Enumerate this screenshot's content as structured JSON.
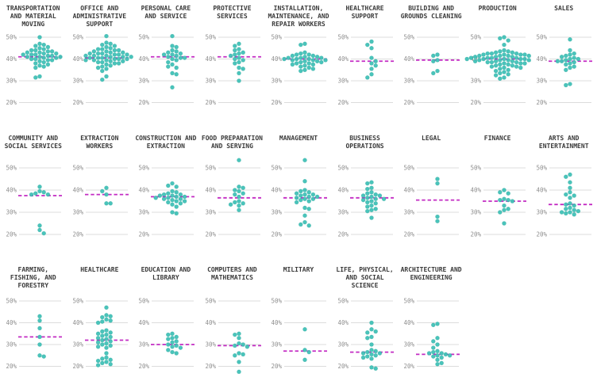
{
  "chart_data": {
    "type": "scatter",
    "subtype": "beeswarm_small_multiples",
    "title": "",
    "unit": "%",
    "yticks": [
      50,
      40,
      30,
      20
    ],
    "ytick_labels": [
      "50%",
      "40%",
      "30%",
      "20%"
    ],
    "grid": true,
    "median_line_style": "dashed",
    "legend": "none",
    "colors": {
      "dot": "#40c1b7",
      "dot_edge": "#24a79c",
      "median": "#c32bc3",
      "gridline": "#dcdcdc",
      "tick_text": "#8f8f8f",
      "title_text": "#3a3a3a",
      "background": "#ffffff"
    },
    "rows": [
      {
        "panels": [
          {
            "title": "TRANSPORTATION AND MATERIAL MOVING",
            "median": 41,
            "values": [
              50,
              47,
              46.5,
              46,
              45.5,
              45,
              44.5,
              44,
              44,
              43.5,
              43.5,
              43,
              43,
              42.5,
              42.5,
              42,
              42,
              42,
              41.5,
              41.5,
              41,
              41,
              41,
              40.5,
              40.5,
              40,
              40,
              39.5,
              39.5,
              39,
              38.5,
              38,
              37.5,
              37,
              36.5,
              36,
              32,
              31.5
            ]
          },
          {
            "title": "OFFICE AND ADMINISTRATIVE SUPPORT",
            "median": 40.5,
            "values": [
              50.5,
              47.5,
              47,
              46.5,
              46,
              45.5,
              45,
              44.5,
              44.5,
              44,
              44,
              43.5,
              43.5,
              43,
              43,
              42.5,
              42.5,
              42.5,
              42,
              42,
              42,
              41.5,
              41.5,
              41.5,
              41,
              41,
              41,
              40.5,
              40.5,
              40.5,
              40,
              40,
              40,
              39.5,
              39.5,
              39.5,
              39,
              39,
              38.5,
              38.5,
              38,
              38,
              37.5,
              37,
              36.5,
              36,
              35.5,
              34.5,
              32,
              30.5
            ]
          },
          {
            "title": "PERSONAL CARE AND SERVICE",
            "median": 41,
            "values": [
              50.5,
              46,
              45.5,
              44,
              43.5,
              43,
              42.5,
              42,
              42,
              41.5,
              41,
              40.5,
              40.5,
              40,
              39.5,
              38.5,
              37.5,
              36.5,
              36,
              33.5,
              33,
              27
            ]
          },
          {
            "title": "PROTECTIVE SERVICES",
            "median": 41,
            "values": [
              47,
              46,
              44.5,
              44,
              43,
              42.5,
              42,
              41.5,
              40.5,
              40,
              39.5,
              38.5,
              38,
              36,
              35.5,
              33.5,
              30
            ]
          },
          {
            "title": "INSTALLATION, MAINTENANCE, AND REPAIR WORKERS",
            "median": 40,
            "values": [
              47,
              46.5,
              43,
              42.5,
              42,
              42,
              41.5,
              41.5,
              41,
              41,
              40.5,
              40.5,
              40.5,
              40,
              40,
              40,
              39.5,
              39.5,
              39.5,
              39,
              39,
              38.5,
              38.5,
              38,
              38,
              37.5,
              37.5,
              37,
              36.5,
              36,
              35.5,
              35,
              34.5
            ]
          },
          {
            "title": "HEALTHCARE SUPPORT",
            "median": 39,
            "values": [
              48,
              46.5,
              45,
              40.5,
              39,
              38,
              37,
              35.5,
              33,
              31.5
            ]
          },
          {
            "title": "BUILDING AND GROUNDS CLEANING",
            "median": 39.5,
            "values": [
              42,
              41.5,
              39.5,
              39,
              34.5,
              33.5
            ]
          },
          {
            "title": "PRODUCTION",
            "median": 40,
            "values": [
              50,
              49.5,
              48.5,
              46.5,
              44,
              43.5,
              43.5,
              43,
              43,
              42.5,
              42.5,
              42.5,
              42,
              42,
              42,
              42,
              41.5,
              41.5,
              41.5,
              41.5,
              41,
              41,
              41,
              41,
              41,
              40.5,
              40.5,
              40.5,
              40.5,
              40,
              40,
              40,
              40,
              40,
              39.5,
              39.5,
              39.5,
              39.5,
              39.5,
              39,
              39,
              39,
              39,
              38.5,
              38.5,
              38.5,
              38,
              38,
              38,
              37.5,
              37.5,
              37,
              37,
              36.5,
              36.5,
              36,
              36,
              35.5,
              35,
              34.5,
              34,
              33.5,
              33,
              32.5,
              31.5,
              31
            ]
          },
          {
            "title": "SALES",
            "median": 39,
            "values": [
              49,
              44,
              42.5,
              42,
              41.5,
              41,
              40.5,
              40,
              40,
              39.5,
              39,
              39,
              38.5,
              38,
              37.5,
              36.5,
              36,
              35,
              28.5,
              28
            ]
          }
        ]
      },
      {
        "panels": [
          {
            "title": "COMMUNITY AND SOCIAL SERVICES",
            "median": 37.5,
            "values": [
              41.5,
              39.5,
              39,
              38.5,
              38,
              38,
              24,
              22,
              20.5
            ]
          },
          {
            "title": "EXTRACTION WORKERS",
            "median": 38,
            "values": [
              41,
              39.5,
              38,
              34,
              34
            ]
          },
          {
            "title": "CONSTRUCTION AND EXTRACTION",
            "median": 37,
            "values": [
              43,
              42,
              41.5,
              39.5,
              39,
              38.5,
              38,
              38,
              37.5,
              37.5,
              37,
              37,
              36.5,
              36.5,
              36,
              36,
              35.5,
              35,
              35,
              34.5,
              34,
              33.5,
              32.5,
              30,
              29.5
            ]
          },
          {
            "title": "FOOD PREPARATION AND SERVING",
            "median": 36.5,
            "values": [
              53.5,
              41.5,
              41,
              40,
              39.5,
              38.5,
              38,
              37,
              35,
              34.5,
              34,
              33.5,
              33,
              31
            ]
          },
          {
            "title": "MANAGEMENT",
            "median": 36.5,
            "values": [
              53.5,
              44,
              40,
              39.5,
              39,
              38.5,
              38,
              38,
              37.5,
              37,
              37,
              36.5,
              36,
              36,
              35.5,
              35,
              34.5,
              32,
              31.5,
              28.5,
              25.5,
              24.5,
              24
            ]
          },
          {
            "title": "BUSINESS OPERATIONS",
            "median": 36.5,
            "values": [
              43.5,
              43,
              41,
              40.5,
              39,
              38.5,
              38,
              37.5,
              37.5,
              37,
              36.5,
              36,
              36,
              35.5,
              35,
              34.5,
              34,
              33,
              32.5,
              31.5,
              31,
              30.5,
              27.5
            ]
          },
          {
            "title": "LEGAL",
            "median": 35.5,
            "values": [
              45,
              43,
              28,
              26
            ]
          },
          {
            "title": "FINANCE",
            "median": 35,
            "values": [
              40,
              39,
              38.5,
              36,
              35.5,
              35.5,
              35,
              33,
              31.5,
              31,
              30,
              25
            ]
          },
          {
            "title": "ARTS AND ENTERTAINMENT",
            "median": 33.5,
            "values": [
              47,
              46,
              43.5,
              41,
              39,
              38,
              37.5,
              36.5,
              34,
              33.5,
              33,
              32,
              31.5,
              31,
              30.5,
              30,
              30,
              29.5,
              29
            ]
          }
        ]
      },
      {
        "panels": [
          {
            "title": "FARMING, FISHING, AND FORESTRY",
            "median": 33.5,
            "values": [
              43,
              41,
              37.5,
              33.5,
              30,
              25,
              24.5
            ]
          },
          {
            "title": "HEALTHCARE",
            "median": 32,
            "values": [
              47,
              43.5,
              43,
              42.5,
              41.5,
              41,
              40.5,
              40,
              36.5,
              36,
              35.5,
              35,
              34.5,
              34,
              33.5,
              33,
              32.5,
              32,
              31.5,
              31,
              30.5,
              30,
              29.5,
              29,
              28.5,
              26,
              24,
              23.5,
              23,
              22.5,
              22,
              21.5,
              21,
              20.5
            ]
          },
          {
            "title": "EDUCATION AND LIBRARY",
            "median": 30,
            "values": [
              35,
              34.5,
              33.5,
              33,
              32.5,
              31.5,
              31,
              30,
              29.5,
              29,
              28.5,
              27.5,
              26.5,
              26
            ]
          },
          {
            "title": "COMPUTERS AND MATHEMATICS",
            "median": 29.5,
            "values": [
              35,
              34.5,
              33,
              30.5,
              30,
              29.5,
              29,
              26,
              25.5,
              25,
              22,
              17.5
            ]
          },
          {
            "title": "MILITARY",
            "median": 27,
            "values": [
              37,
              27.5,
              26.5,
              23
            ]
          },
          {
            "title": "LIFE, PHYSICAL, AND SOCIAL SCIENCE",
            "median": 26.5,
            "values": [
              40,
              37,
              36,
              35.5,
              33.5,
              33,
              30,
              27.5,
              27,
              26.5,
              26,
              26,
              25.5,
              25,
              24.5,
              24,
              23.5,
              19.5,
              19
            ]
          },
          {
            "title": "ARCHITECTURE AND ENGINEERING",
            "median": 25.5,
            "values": [
              39.5,
              39,
              33,
              31.5,
              30,
              28.5,
              27,
              26.5,
              26,
              26,
              25.5,
              25,
              25,
              24.5,
              24,
              23,
              21.5,
              21
            ]
          }
        ]
      }
    ]
  }
}
